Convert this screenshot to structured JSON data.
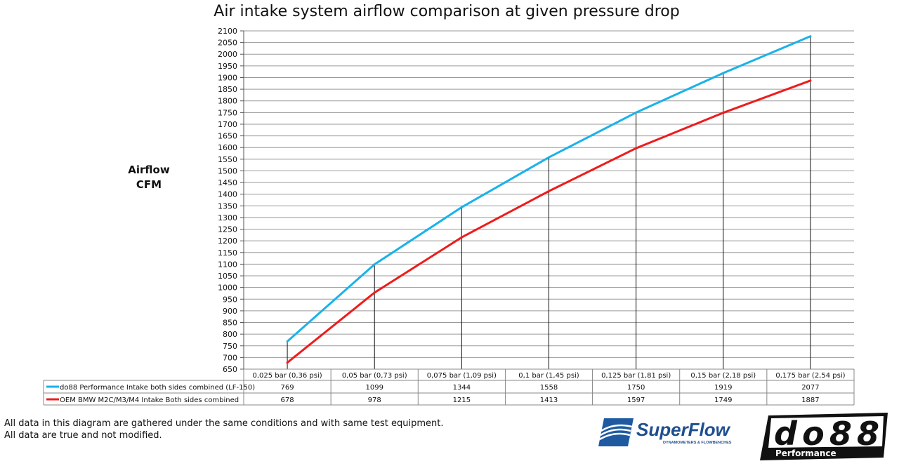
{
  "chart_data": {
    "type": "line",
    "title": "Air intake system airflow comparison at given pressure drop",
    "ylabel": [
      "Airflow",
      "CFM"
    ],
    "xlabel": "",
    "ylim": [
      650,
      2100
    ],
    "ytick_step": 50,
    "grid": true,
    "legend_placement": "bottom data table",
    "categories": [
      "0,025 bar (0,36 psi)",
      "0,05 bar (0,73 psi)",
      "0,075 bar (1,09 psi)",
      "0,1 bar (1,45 psi)",
      "0,125 bar (1,81 psi)",
      "0,15 bar (2,18 psi)",
      "0,175 bar (2,54 psi)"
    ],
    "series": [
      {
        "name": "do88 Performance Intake both sides combined (LF-150)",
        "color": "#1ab2ea",
        "values": [
          769,
          1099,
          1344,
          1558,
          1750,
          1919,
          2077
        ]
      },
      {
        "name": "OEM BMW M2C/M3/M4 Intake Both sides combined",
        "color": "#ee1c1c",
        "values": [
          678,
          978,
          1215,
          1413,
          1597,
          1749,
          1887
        ]
      }
    ]
  },
  "footnote": [
    "All data in this diagram are gathered under the same conditions and with same test equipment.",
    "All data are true and not modified."
  ],
  "logos": {
    "superflow": "SuperFlow",
    "superflow_tagline": "DYNAMOMETERS & FLOWBENCHES",
    "do88": "do88",
    "do88_sub": "Performance"
  }
}
